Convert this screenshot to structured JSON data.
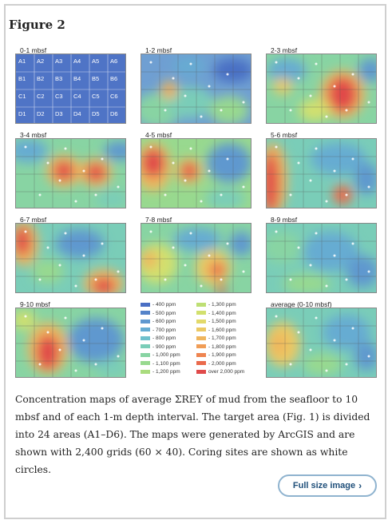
{
  "figure_title": "Figure 2",
  "panels": [
    {
      "label": "0-1 mbsf"
    },
    {
      "label": "1-2 mbsf"
    },
    {
      "label": "2-3 mbsf"
    },
    {
      "label": "3-4 mbsf"
    },
    {
      "label": "4-5 mbsf"
    },
    {
      "label": "5-6 mbsf"
    },
    {
      "label": "6-7 mbsf"
    },
    {
      "label": "7-8 mbsf"
    },
    {
      "label": "8-9 mbsf"
    },
    {
      "label": "9-10 mbsf"
    },
    {
      "label": "average (0-10 mbsf)"
    }
  ],
  "grid_cells": [
    "A1",
    "A2",
    "A3",
    "A4",
    "A5",
    "A6",
    "B1",
    "B2",
    "B3",
    "B4",
    "B5",
    "B6",
    "C1",
    "C2",
    "C3",
    "C4",
    "C5",
    "C6",
    "D1",
    "D2",
    "D3",
    "D4",
    "D5",
    "D6"
  ],
  "legend": [
    {
      "label": "- 400 ppm",
      "color": "#4a6fc4"
    },
    {
      "label": "- 500 ppm",
      "color": "#5583c9"
    },
    {
      "label": "- 600 ppm",
      "color": "#5f98cf"
    },
    {
      "label": "- 700 ppm",
      "color": "#66acd2"
    },
    {
      "label": "- 800 ppm",
      "color": "#6fc0cc"
    },
    {
      "label": "- 900 ppm",
      "color": "#7acdb8"
    },
    {
      "label": "- 1,000 ppm",
      "color": "#88d4a3"
    },
    {
      "label": "- 1,100 ppm",
      "color": "#98d98f"
    },
    {
      "label": "- 1,200 ppm",
      "color": "#aadc7e"
    },
    {
      "label": "- 1,300 ppm",
      "color": "#bedf74"
    },
    {
      "label": "- 1,400 ppm",
      "color": "#d2e06e"
    },
    {
      "label": "- 1,500 ppm",
      "color": "#e2d96a"
    },
    {
      "label": "- 1,600 ppm",
      "color": "#ebc964"
    },
    {
      "label": "- 1,700 ppm",
      "color": "#efb55d"
    },
    {
      "label": "- 1,800 ppm",
      "color": "#f09d56"
    },
    {
      "label": "- 1,900 ppm",
      "color": "#ee8450"
    },
    {
      "label": "- 2,000 ppm",
      "color": "#ea6a4c"
    },
    {
      "label": "over 2,000 ppm",
      "color": "#e04a4a"
    }
  ],
  "caption": "Concentration maps of average ΣREY of mud from the seafloor to 10 mbsf and of each 1-m depth interval. The target area (Fig. 1) is divided into 24 areas (A1–D6). The maps were generated by ArcGIS and are shown with 2,400 grids (60 × 40). Coring sites are shown as white circles.",
  "full_size_button": "Full size image",
  "chevron_icon": "chevron-right-icon"
}
